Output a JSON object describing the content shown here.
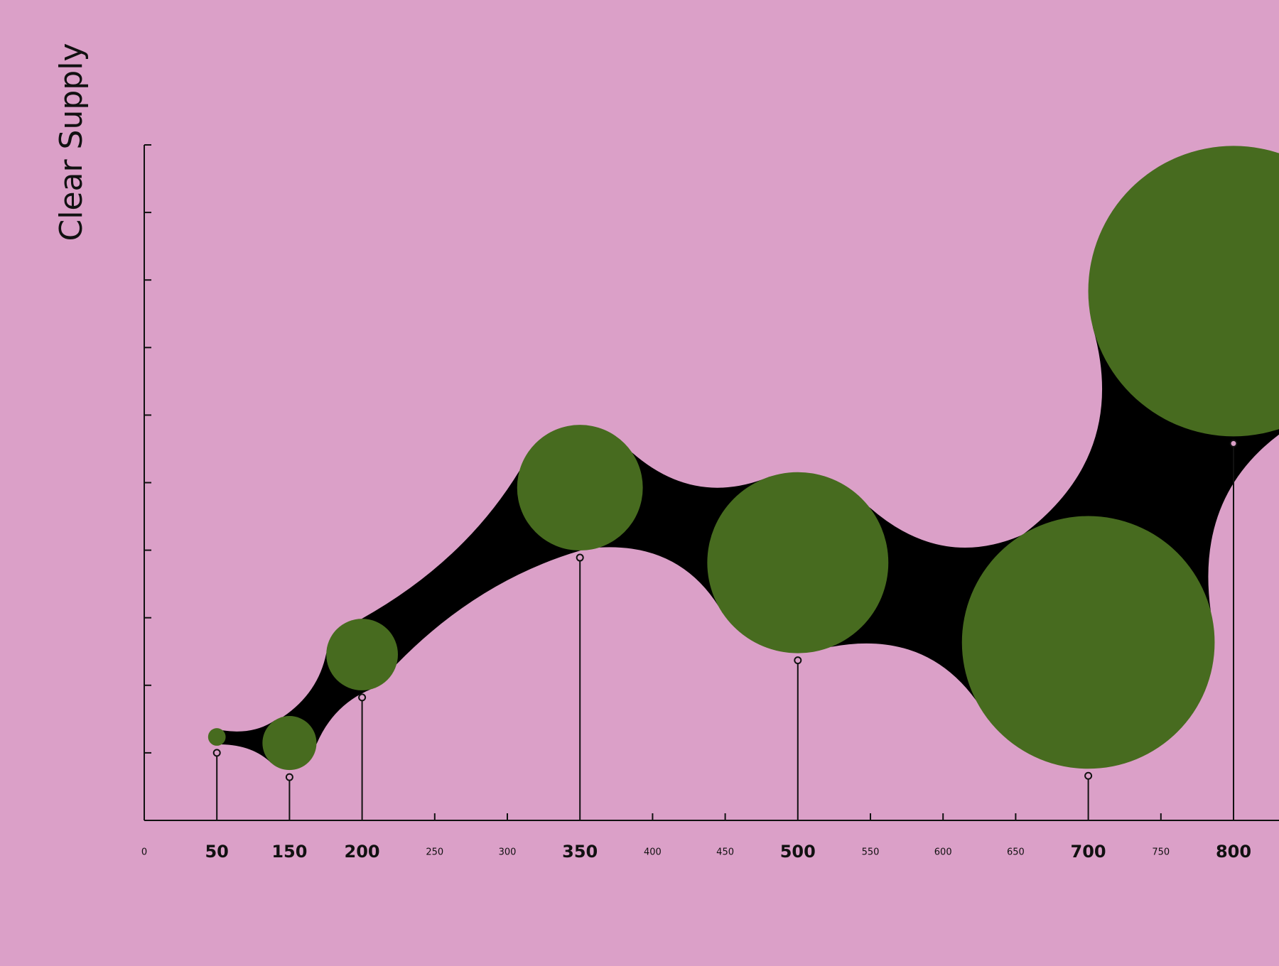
{
  "chart_data": {
    "type": "bubble",
    "title": "Clear Supply",
    "categories": [
      "0",
      "50",
      "150",
      "200",
      "250",
      "300",
      "350",
      "400",
      "450",
      "500",
      "550",
      "600",
      "650",
      "700",
      "750",
      "800"
    ],
    "values": [
      null,
      1.0,
      0.64,
      1.82,
      null,
      null,
      3.89,
      null,
      null,
      2.37,
      null,
      null,
      null,
      0.66,
      null,
      5.58
    ],
    "sizes": [
      null,
      0.13,
      0.4,
      0.53,
      null,
      null,
      0.93,
      null,
      null,
      1.34,
      null,
      null,
      null,
      1.87,
      null,
      2.15
    ],
    "color": "#476b1f",
    "link_color": "#000000",
    "background": "#dba0c8",
    "ylim": [
      0,
      10
    ],
    "yticks": [
      0,
      1,
      2,
      3,
      4,
      5,
      6,
      7,
      8,
      9,
      10
    ]
  }
}
